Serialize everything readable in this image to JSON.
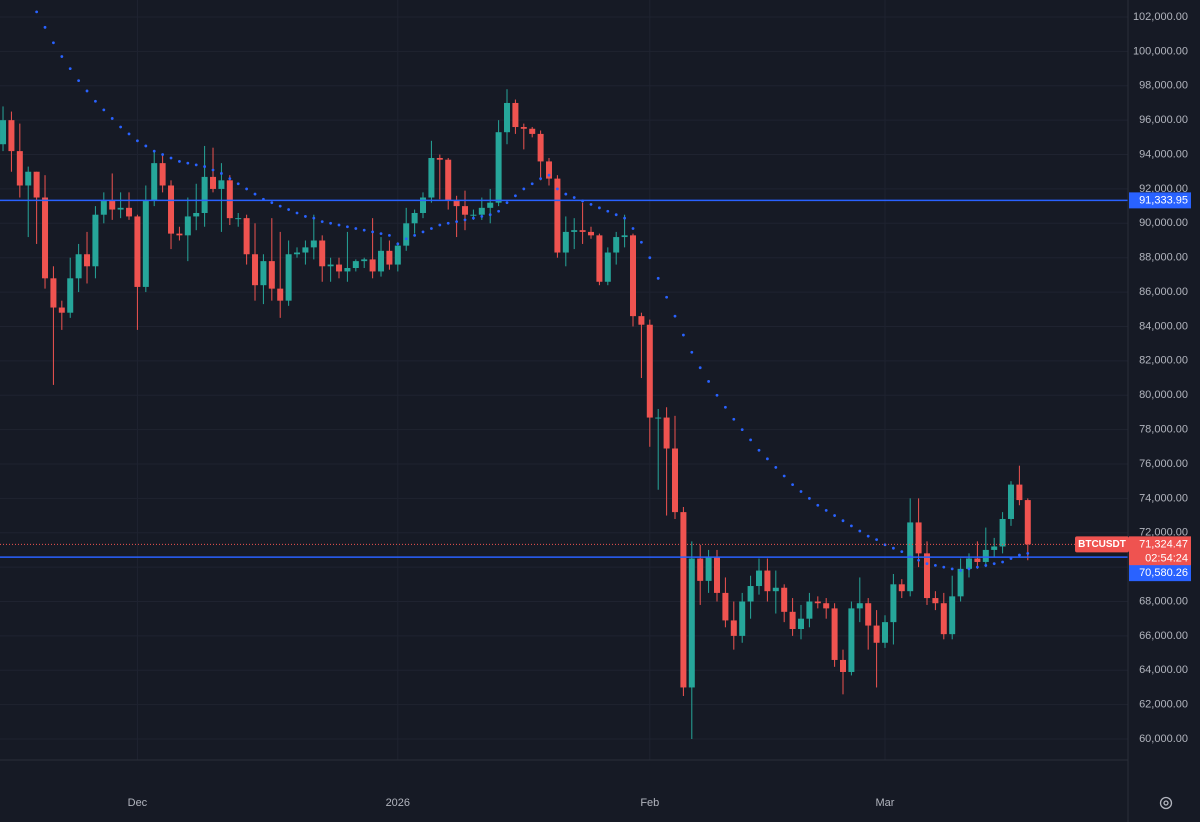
{
  "chart_data": {
    "type": "candlestick",
    "symbol": "BTCUSDT",
    "up_color": "#26a69a",
    "down_color": "#ef5350",
    "ohlc": [
      [
        94600,
        96800,
        94200,
        96000
      ],
      [
        96000,
        96500,
        93000,
        94200
      ],
      [
        94200,
        95800,
        91500,
        92200
      ],
      [
        92200,
        93300,
        89200,
        93000
      ],
      [
        93000,
        93000,
        88800,
        91500
      ],
      [
        91500,
        92800,
        86200,
        86800
      ],
      [
        86800,
        87500,
        80600,
        85100
      ],
      [
        85100,
        85500,
        83800,
        84800
      ],
      [
        84800,
        88000,
        84500,
        86800
      ],
      [
        86800,
        88800,
        86000,
        88200
      ],
      [
        88200,
        89500,
        86500,
        87500
      ],
      [
        87500,
        91000,
        86800,
        90500
      ],
      [
        90500,
        91800,
        90000,
        91300
      ],
      [
        91300,
        92900,
        90200,
        90800
      ],
      [
        90800,
        91800,
        90300,
        90900
      ],
      [
        90900,
        91800,
        90200,
        90400
      ],
      [
        90400,
        90500,
        83800,
        86300
      ],
      [
        86300,
        92200,
        86000,
        91300
      ],
      [
        91300,
        94200,
        91000,
        93500
      ],
      [
        93500,
        94000,
        91800,
        92200
      ],
      [
        92200,
        92500,
        88500,
        89400
      ],
      [
        89400,
        89800,
        89000,
        89300
      ],
      [
        89300,
        91500,
        87800,
        90400
      ],
      [
        90400,
        92300,
        89600,
        90600
      ],
      [
        90600,
        94500,
        89800,
        92700
      ],
      [
        92700,
        94400,
        91800,
        92000
      ],
      [
        92000,
        93500,
        89500,
        92500
      ],
      [
        92500,
        92800,
        89900,
        90300
      ],
      [
        90300,
        90600,
        89800,
        90300
      ],
      [
        90300,
        90500,
        87600,
        88200
      ],
      [
        88200,
        90000,
        85500,
        86400
      ],
      [
        86400,
        88200,
        85300,
        87800
      ],
      [
        87800,
        90300,
        85500,
        86200
      ],
      [
        86200,
        89500,
        84500,
        85500
      ],
      [
        85500,
        89000,
        85200,
        88200
      ],
      [
        88200,
        88600,
        88000,
        88300
      ],
      [
        88300,
        89000,
        87600,
        88600
      ],
      [
        88600,
        90500,
        87900,
        89000
      ],
      [
        89000,
        89300,
        86600,
        87500
      ],
      [
        87500,
        88000,
        86600,
        87600
      ],
      [
        87600,
        88000,
        86800,
        87200
      ],
      [
        87200,
        89500,
        86600,
        87400
      ],
      [
        87400,
        87900,
        87200,
        87800
      ],
      [
        87800,
        88000,
        87400,
        87900
      ],
      [
        87900,
        90300,
        86800,
        87200
      ],
      [
        87200,
        89200,
        86900,
        88400
      ],
      [
        88400,
        89000,
        87300,
        87600
      ],
      [
        87600,
        88900,
        87200,
        88700
      ],
      [
        88700,
        90900,
        88400,
        90000
      ],
      [
        90000,
        90800,
        89400,
        90600
      ],
      [
        90600,
        91800,
        90300,
        91500
      ],
      [
        91500,
        94800,
        91200,
        93800
      ],
      [
        93800,
        94000,
        91400,
        93700
      ],
      [
        93700,
        93800,
        90800,
        91300
      ],
      [
        91300,
        91600,
        89200,
        91000
      ],
      [
        91000,
        91900,
        89600,
        90500
      ],
      [
        90500,
        90800,
        90200,
        90500
      ],
      [
        90500,
        91500,
        90200,
        90900
      ],
      [
        90900,
        92000,
        90000,
        91200
      ],
      [
        91200,
        96000,
        91000,
        95300
      ],
      [
        95300,
        97800,
        94600,
        97000
      ],
      [
        97000,
        97200,
        95200,
        95600
      ],
      [
        95600,
        95800,
        94300,
        95500
      ],
      [
        95500,
        95600,
        95000,
        95200
      ],
      [
        95200,
        95400,
        92500,
        93600
      ],
      [
        93600,
        93800,
        92200,
        92600
      ],
      [
        92600,
        92800,
        88000,
        88300
      ],
      [
        88300,
        90400,
        87500,
        89500
      ],
      [
        89500,
        90300,
        88500,
        89600
      ],
      [
        89600,
        91200,
        88800,
        89500
      ],
      [
        89500,
        89800,
        89100,
        89300
      ],
      [
        89300,
        89400,
        86400,
        86600
      ],
      [
        86600,
        88600,
        86400,
        88300
      ],
      [
        88300,
        89500,
        87600,
        89200
      ],
      [
        89200,
        90500,
        88600,
        89300
      ],
      [
        89300,
        89400,
        84000,
        84600
      ],
      [
        84600,
        84800,
        81000,
        84100
      ],
      [
        84100,
        84400,
        77000,
        78700
      ],
      [
        78700,
        79200,
        74500,
        78700
      ],
      [
        78700,
        79300,
        73000,
        76900
      ],
      [
        76900,
        78800,
        72800,
        73200
      ],
      [
        73200,
        73500,
        62500,
        63000
      ],
      [
        63000,
        71500,
        60000,
        70500
      ],
      [
        70500,
        71300,
        67800,
        69200
      ],
      [
        69200,
        71000,
        68500,
        70600
      ],
      [
        70600,
        71000,
        68000,
        68500
      ],
      [
        68500,
        69400,
        66500,
        66900
      ],
      [
        66900,
        68000,
        65200,
        66000
      ],
      [
        66000,
        68500,
        65600,
        68000
      ],
      [
        68000,
        69500,
        67000,
        68900
      ],
      [
        68900,
        70500,
        68400,
        69800
      ],
      [
        69800,
        70500,
        68000,
        68600
      ],
      [
        68600,
        69800,
        67300,
        68800
      ],
      [
        68800,
        69000,
        66800,
        67400
      ],
      [
        67400,
        68200,
        66000,
        66400
      ],
      [
        66400,
        67800,
        65800,
        67000
      ],
      [
        67000,
        68500,
        66500,
        68000
      ],
      [
        68000,
        68300,
        67600,
        67900
      ],
      [
        67900,
        68200,
        67000,
        67600
      ],
      [
        67600,
        67900,
        64200,
        64600
      ],
      [
        64600,
        65200,
        62600,
        63900
      ],
      [
        63900,
        68000,
        63700,
        67600
      ],
      [
        67600,
        69400,
        66800,
        67900
      ],
      [
        67900,
        68200,
        65200,
        66600
      ],
      [
        66600,
        67500,
        63000,
        65600
      ],
      [
        65600,
        67200,
        65300,
        66800
      ],
      [
        66800,
        69600,
        65500,
        69000
      ],
      [
        69000,
        69300,
        68200,
        68600
      ],
      [
        68600,
        74000,
        68300,
        72600
      ],
      [
        72600,
        74000,
        70000,
        70800
      ],
      [
        70800,
        71500,
        67800,
        68200
      ],
      [
        68200,
        68600,
        67500,
        67900
      ],
      [
        67900,
        68500,
        65800,
        66100
      ],
      [
        66100,
        69500,
        65800,
        68300
      ],
      [
        68300,
        70500,
        68000,
        69900
      ],
      [
        69900,
        70800,
        69400,
        70500
      ],
      [
        70500,
        71500,
        69900,
        70300
      ],
      [
        70300,
        72300,
        70000,
        71000
      ],
      [
        71000,
        71700,
        70600,
        71200
      ],
      [
        71200,
        73200,
        70800,
        72800
      ],
      [
        72800,
        75000,
        72400,
        74800
      ],
      [
        74800,
        75900,
        73600,
        73900
      ],
      [
        73900,
        74000,
        70400,
        71324.47
      ]
    ],
    "sar": {
      "color": "#2962ff",
      "values": [
        null,
        null,
        null,
        null,
        102300,
        101400,
        100500,
        99700,
        99000,
        98300,
        97700,
        97100,
        96600,
        96100,
        95600,
        95200,
        94800,
        94500,
        94200,
        94000,
        93800,
        93600,
        93500,
        93400,
        93300,
        93100,
        92900,
        92600,
        92300,
        92000,
        91700,
        91400,
        91200,
        91000,
        90800,
        90600,
        90400,
        90300,
        90100,
        90000,
        89900,
        89800,
        89700,
        89600,
        89500,
        89400,
        89300,
        88800,
        89100,
        89300,
        89500,
        89700,
        89900,
        90000,
        90100,
        90200,
        90300,
        90400,
        90500,
        90700,
        91200,
        91600,
        92000,
        92300,
        92600,
        92800,
        92000,
        91700,
        91500,
        91300,
        91100,
        90900,
        90700,
        90500,
        90300,
        89700,
        88900,
        88000,
        86800,
        85700,
        84600,
        83500,
        82500,
        81600,
        80800,
        80000,
        79300,
        78600,
        78000,
        77400,
        76800,
        76300,
        75800,
        75300,
        74800,
        74400,
        74000,
        73600,
        73300,
        73000,
        72700,
        72400,
        72100,
        71800,
        71600,
        71300,
        71100,
        70900,
        70600,
        70400,
        70200,
        70100,
        70000,
        69900,
        69800,
        69900,
        70000,
        70100,
        70200,
        70300,
        70500,
        70700,
        70800
      ]
    },
    "hline_color": "#2962ff",
    "hlines": [
      {
        "value": 91333.95,
        "label": "91,333.95"
      },
      {
        "value": 70580.26,
        "label": "70,580.26"
      }
    ],
    "last_price": {
      "value": 71324.47,
      "label": "71,324.47",
      "countdown": "02:54:24"
    },
    "xlim": [
      -0.36,
      133.93
    ],
    "xticks": [
      {
        "value": 16,
        "label": "Dec"
      },
      {
        "value": 47,
        "label": "2026"
      },
      {
        "value": 77,
        "label": "Feb"
      },
      {
        "value": 105,
        "label": "Mar"
      }
    ],
    "ylim": [
      58780,
      102990
    ],
    "yticks": [
      {
        "value": 60000,
        "label": "60,000.00"
      },
      {
        "value": 62000,
        "label": "62,000.00"
      },
      {
        "value": 64000,
        "label": "64,000.00"
      },
      {
        "value": 66000,
        "label": "66,000.00"
      },
      {
        "value": 68000,
        "label": "68,000.00"
      },
      {
        "value": 70000,
        "label": "70,000.00"
      },
      {
        "value": 72000,
        "label": "72,000.00"
      },
      {
        "value": 74000,
        "label": "74,000.00"
      },
      {
        "value": 76000,
        "label": "76,000.00"
      },
      {
        "value": 78000,
        "label": "78,000.00"
      },
      {
        "value": 80000,
        "label": "80,000.00"
      },
      {
        "value": 82000,
        "label": "82,000.00"
      },
      {
        "value": 84000,
        "label": "84,000.00"
      },
      {
        "value": 86000,
        "label": "86,000.00"
      },
      {
        "value": 88000,
        "label": "88,000.00"
      },
      {
        "value": 90000,
        "label": "90,000.00"
      },
      {
        "value": 92000,
        "label": "92,000.00"
      },
      {
        "value": 94000,
        "label": "94,000.00"
      },
      {
        "value": 96000,
        "label": "96,000.00"
      },
      {
        "value": 98000,
        "label": "98,000.00"
      },
      {
        "value": 100000,
        "label": "100,000.00"
      },
      {
        "value": 102000,
        "label": "102,000.00"
      }
    ],
    "grid": true
  }
}
